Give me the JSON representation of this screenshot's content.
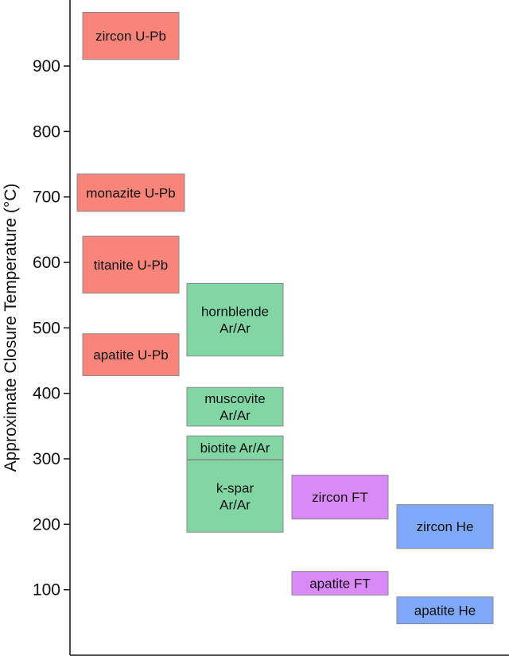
{
  "chart_data": {
    "type": "range-bar",
    "ylabel": "Approximate Closure Temperature (°C)",
    "ylim": [
      0,
      1000
    ],
    "yticks": [
      100,
      200,
      300,
      400,
      500,
      600,
      700,
      800,
      900
    ],
    "colors": {
      "U-Pb": "#f8847a",
      "Ar/Ar": "#82d6a4",
      "FT": "#d98af6",
      "He": "#7fa8f8",
      "border": "#888888"
    },
    "columns": [
      "U-Pb",
      "Ar/Ar",
      "FT",
      "He"
    ],
    "boxes": [
      {
        "label": [
          "zircon U-Pb"
        ],
        "group": "U-Pb",
        "column": 0,
        "min": 910,
        "max": 982
      },
      {
        "label": [
          "monazite U-Pb"
        ],
        "group": "U-Pb",
        "column": 0,
        "min": 678,
        "max": 735,
        "wide": true
      },
      {
        "label": [
          "titanite U-Pb"
        ],
        "group": "U-Pb",
        "column": 0,
        "min": 553,
        "max": 640
      },
      {
        "label": [
          "apatite U-Pb"
        ],
        "group": "U-Pb",
        "column": 0,
        "min": 427,
        "max": 491
      },
      {
        "label": [
          "hornblende",
          "Ar/Ar"
        ],
        "group": "Ar/Ar",
        "column": 1,
        "min": 457,
        "max": 568
      },
      {
        "label": [
          "muscovite",
          "Ar/Ar"
        ],
        "group": "Ar/Ar",
        "column": 1,
        "min": 350,
        "max": 409
      },
      {
        "label": [
          "biotite Ar/Ar"
        ],
        "group": "Ar/Ar",
        "column": 1,
        "min": 299,
        "max": 335
      },
      {
        "label": [
          "k-spar",
          "Ar/Ar"
        ],
        "group": "Ar/Ar",
        "column": 1,
        "min": 188,
        "max": 298
      },
      {
        "label": [
          "zircon FT"
        ],
        "group": "FT",
        "column": 2,
        "min": 208,
        "max": 275
      },
      {
        "label": [
          "apatite FT"
        ],
        "group": "FT",
        "column": 2,
        "min": 92,
        "max": 128
      },
      {
        "label": [
          "zircon He"
        ],
        "group": "He",
        "column": 3,
        "min": 163,
        "max": 230
      },
      {
        "label": [
          "apatite He"
        ],
        "group": "He",
        "column": 3,
        "min": 48,
        "max": 89
      }
    ]
  }
}
